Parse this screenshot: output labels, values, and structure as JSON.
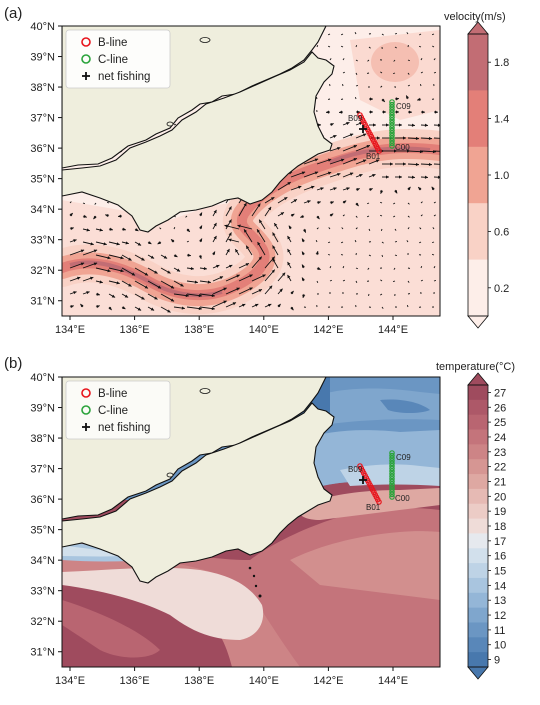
{
  "panels": [
    {
      "label": "(a)",
      "legend": [
        "B-line",
        "C-line",
        "net fishing"
      ],
      "colorbar": {
        "title": "velocity(m/s)",
        "ticks": [
          "1.8",
          "1.4",
          "1.0",
          "0.6",
          "0.2"
        ],
        "colors": [
          "#c26d74",
          "#e37f78",
          "#f0a493",
          "#f9d2c6",
          "#fdeee9"
        ]
      },
      "station_labels": [
        "B09",
        "B01",
        "C09",
        "C00"
      ]
    },
    {
      "label": "(b)",
      "legend": [
        "B-line",
        "C-line",
        "net fishing"
      ],
      "colorbar": {
        "title": "temperature(°C)",
        "ticks": [
          "27",
          "26",
          "25",
          "24",
          "23",
          "22",
          "21",
          "20",
          "19",
          "18",
          "17",
          "16",
          "15",
          "14",
          "13",
          "12",
          "11",
          "10",
          "9"
        ],
        "colors": [
          "#9f4b5e",
          "#ad5868",
          "#b96571",
          "#c4747b",
          "#cd8486",
          "#d69693",
          "#dea8a2",
          "#e6bab4",
          "#ecccc6",
          "#efdcd8",
          "#e6e9ee",
          "#d2e0ec",
          "#bed3e6",
          "#a9c5df",
          "#94b6d7",
          "#7fa6cd",
          "#6b96c3",
          "#5987b9",
          "#4878ad"
        ]
      },
      "station_labels": [
        "B09",
        "B01",
        "C09",
        "C00"
      ]
    }
  ],
  "axes": {
    "lat_labels": [
      "40°N",
      "39°N",
      "38°N",
      "37°N",
      "36°N",
      "35°N",
      "34°N",
      "33°N",
      "32°N",
      "31°N"
    ],
    "lon_labels": [
      "134°E",
      "136°E",
      "138°E",
      "140°E",
      "142°E",
      "144°E"
    ]
  },
  "colors": {
    "land": "#efeedd",
    "b_line": "#e8141c",
    "c_line": "#2aa33b"
  }
}
